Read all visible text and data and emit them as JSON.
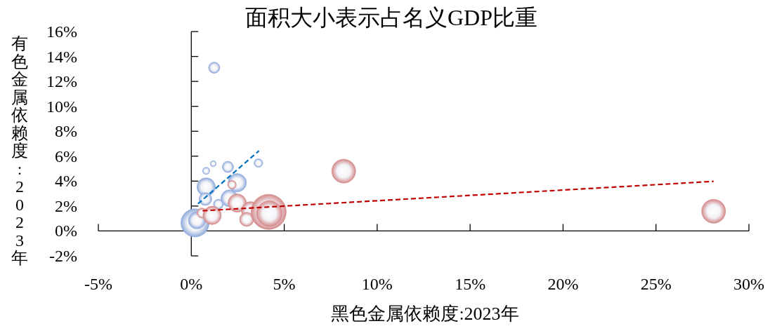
{
  "chart_data": {
    "type": "bubble",
    "title": "面积大小表示占名义GDP比重",
    "xlabel": "黑色金属依赖度:2023年",
    "ylabel": "有色金属依赖度:2023年",
    "xlim": [
      -5,
      30
    ],
    "ylim": [
      -2,
      16
    ],
    "xticks": [
      {
        "value": -5,
        "label": "-5%"
      },
      {
        "value": 0,
        "label": "0%"
      },
      {
        "value": 5,
        "label": "5%"
      },
      {
        "value": 10,
        "label": "10%"
      },
      {
        "value": 15,
        "label": "15%"
      },
      {
        "value": 20,
        "label": "20%"
      },
      {
        "value": 25,
        "label": "25%"
      },
      {
        "value": 30,
        "label": "30%"
      }
    ],
    "yticks": [
      {
        "value": -2,
        "label": "-2%"
      },
      {
        "value": 0,
        "label": "0%"
      },
      {
        "value": 2,
        "label": "2%"
      },
      {
        "value": 4,
        "label": "4%"
      },
      {
        "value": 6,
        "label": "6%"
      },
      {
        "value": 8,
        "label": "8%"
      },
      {
        "value": 10,
        "label": "10%"
      },
      {
        "value": 12,
        "label": "12%"
      },
      {
        "value": 14,
        "label": "14%"
      },
      {
        "value": 16,
        "label": "16%"
      }
    ],
    "series": [
      {
        "color": "#8eaadb",
        "x": [
          1.23,
          1.18,
          0.8,
          1.97,
          3.61,
          0.8,
          2.47,
          0.76,
          2.05,
          1.46,
          0.2,
          0.3
        ],
        "values": [
          13.1,
          5.4,
          4.82,
          5.14,
          5.45,
          3.53,
          3.87,
          2.56,
          2.62,
          2.15,
          0.65,
          0.85
        ],
        "sizes": [
          0.1,
          0.026,
          0.04,
          0.1,
          0.058,
          0.27,
          0.27,
          0.13,
          0.23,
          0.078,
          0.64,
          0.23
        ]
      },
      {
        "color": "#d48a8a",
        "x": [
          2.19,
          2.47,
          0.57,
          1.12,
          3.19,
          2.98,
          4.16,
          4.2,
          8.2,
          28.1
        ],
        "values": [
          3.71,
          2.24,
          1.44,
          1.25,
          1.62,
          0.93,
          1.53,
          1.4,
          4.8,
          1.58
        ],
        "sizes": [
          0.058,
          0.27,
          0.078,
          0.27,
          0.27,
          0.16,
          1,
          0.52,
          0.46,
          0.46
        ]
      },
      {
        "type": "line",
        "line_style": "dashed",
        "color": "#0070c0",
        "x": [
          0.36,
          3.64
        ],
        "values": [
          2.18,
          6.43
        ]
      },
      {
        "type": "line",
        "line_style": "dashed",
        "color": "#c00000",
        "x": [
          0.61,
          28.1
        ],
        "values": [
          1.62,
          3.98
        ]
      }
    ]
  }
}
